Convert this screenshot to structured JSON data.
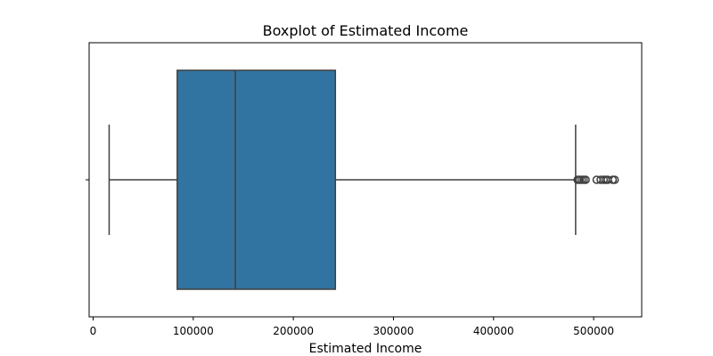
{
  "chart_data": {
    "type": "boxplot",
    "title": "Boxplot of Estimated Income",
    "xlabel": "Estimated Income",
    "ylabel": "",
    "orientation": "horizontal",
    "xlim": [
      -4000,
      548000
    ],
    "xticks": [
      0,
      100000,
      200000,
      300000,
      400000,
      500000
    ],
    "xtick_labels": [
      "0",
      "100000",
      "200000",
      "300000",
      "400000",
      "500000"
    ],
    "grid": false,
    "legend": "none",
    "box": {
      "whisker_low": 16000,
      "q1": 84000,
      "median": 142000,
      "q3": 242000,
      "whisker_high": 482000
    },
    "outliers": [
      484000,
      486000,
      488000,
      490000,
      492000,
      503000,
      507000,
      510000,
      512000,
      514000,
      519000,
      521000
    ],
    "colors": {
      "box_fill": "#3274a1",
      "line": "#3f3f3f",
      "axis": "#000000"
    }
  }
}
